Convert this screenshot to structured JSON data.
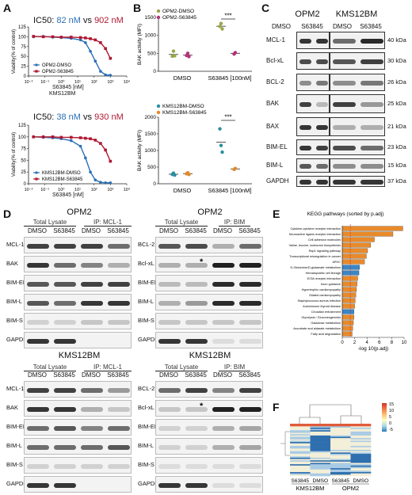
{
  "panels": {
    "A": "A",
    "B": "B",
    "C": "C",
    "D": "D",
    "E": "E",
    "F": "F"
  },
  "colors": {
    "dmso": "#1b3a6b",
    "s63845": "#b01830",
    "dmso_light": "#2b6fb5",
    "s_light": "#e08a2a",
    "orange": "#e98a2a",
    "blue": "#3a86c6",
    "red_line": "#cc2222"
  },
  "panelA": {
    "top": {
      "ic50_prefix": "IC50:",
      "ic50_dmso": "82 nM",
      "vs": "vs",
      "ic50_s": "902 nM",
      "ylabel": "Viability(% of control)",
      "xlabel": "S63845 [nM]",
      "cell": "KMS12BM",
      "legend": [
        "OPM2-DMSO",
        "OPM2-S63845"
      ]
    },
    "bottom": {
      "ic50_prefix": "IC50:",
      "ic50_dmso": "38 nM",
      "vs": "vs",
      "ic50_s": "930 nM",
      "ylabel": "Viability(% of control)",
      "xlabel": "S63845 [nM]",
      "legend": [
        "KMS12BM-DMSO",
        "KMS12BM-S63845"
      ]
    },
    "yticks": [
      "0",
      "25",
      "50",
      "75",
      "100",
      "125"
    ],
    "xticks": [
      "10⁻²",
      "10⁻¹",
      "10⁰",
      "10¹",
      "10²",
      "10³",
      "10⁴"
    ]
  },
  "chart_data": [
    {
      "type": "scatter",
      "title": "IC50: 82 nM vs 902 nM",
      "xlabel": "S63845 [nM]",
      "ylabel": "Viability(% of control)",
      "ylim": [
        0,
        125
      ],
      "xscale": "log",
      "series": [
        {
          "name": "OPM2-DMSO",
          "x": [
            0.02,
            0.08,
            0.3,
            1,
            4,
            15,
            30,
            60,
            120,
            250,
            500,
            1000
          ],
          "y": [
            100,
            101,
            99,
            98,
            96,
            92,
            85,
            63,
            38,
            12,
            3,
            2
          ]
        },
        {
          "name": "OPM2-S63845",
          "x": [
            0.02,
            0.08,
            0.3,
            1,
            4,
            15,
            30,
            60,
            120,
            250,
            500,
            1000
          ],
          "y": [
            101,
            100,
            100,
            99,
            99,
            98,
            97,
            95,
            92,
            85,
            70,
            45
          ]
        }
      ]
    },
    {
      "type": "scatter",
      "title": "IC50: 38 nM vs 930 nM",
      "xlabel": "S63845 [nM]",
      "ylabel": "Viability(% of control)",
      "ylim": [
        0,
        125
      ],
      "xscale": "log",
      "series": [
        {
          "name": "KMS12BM-DMSO",
          "x": [
            0.02,
            0.08,
            0.3,
            1,
            4,
            15,
            30,
            60,
            120,
            250,
            500,
            1000
          ],
          "y": [
            100,
            99,
            98,
            96,
            92,
            80,
            55,
            25,
            8,
            3,
            2,
            2
          ]
        },
        {
          "name": "KMS12BM-S63845",
          "x": [
            0.02,
            0.08,
            0.3,
            1,
            4,
            15,
            30,
            60,
            120,
            250,
            500,
            1000
          ],
          "y": [
            100,
            100,
            100,
            99,
            99,
            98,
            97,
            96,
            93,
            86,
            72,
            48
          ]
        }
      ]
    },
    {
      "type": "scatter",
      "ylabel": "BAK activity (MFI)",
      "ylim": [
        0,
        1500
      ],
      "categories": [
        "DMSO",
        "S63845 [100nM]"
      ],
      "significance": "***",
      "series": [
        {
          "name": "OPM2-DMSO",
          "x": [
            "DMSO",
            "DMSO",
            "DMSO",
            "S63845 [100nM]",
            "S63845 [100nM]",
            "S63845 [100nM]"
          ],
          "y": [
            420,
            560,
            430,
            1250,
            1330,
            1180
          ]
        },
        {
          "name": "OPM2-S63845",
          "x": [
            "DMSO",
            "DMSO",
            "DMSO",
            "S63845 [100nM]",
            "S63845 [100nM]"
          ],
          "y": [
            440,
            500,
            410,
            480,
            520
          ]
        }
      ]
    },
    {
      "type": "scatter",
      "ylabel": "BAK activity (MFI)",
      "ylim": [
        0,
        2000
      ],
      "categories": [
        "DMSO",
        "S63845 [100nM]"
      ],
      "significance": "***",
      "series": [
        {
          "name": "KMS12BM-DMSO",
          "x": [
            "DMSO",
            "DMSO",
            "DMSO",
            "S63845 [100nM]",
            "S63845 [100nM]",
            "S63845 [100nM]"
          ],
          "y": [
            280,
            320,
            260,
            1650,
            1150,
            950
          ]
        },
        {
          "name": "KMS12BM-S63845",
          "x": [
            "DMSO",
            "DMSO",
            "DMSO",
            "S63845 [100nM]",
            "S63845 [100nM]"
          ],
          "y": [
            300,
            330,
            280,
            430,
            460
          ]
        }
      ]
    },
    {
      "type": "bar",
      "title": "KEGG pathways (sorted by p.adj)",
      "xlabel": "-log 10(p.adj)",
      "xlim": [
        0,
        10
      ],
      "categories": [
        "Cytokine-cytokine receptor interaction",
        "Neuroactive ligand-receptor interaction",
        "Cell adhesion molecules",
        "Valine, leucine, isoleucine biosynthesis",
        "Rap1 signaling pathway",
        "Transcriptional misregulation in cancer",
        "ARVC",
        "D-Glutamine/D-glutamate metabolism",
        "Hematopoietic cell lineage",
        "ECM-receptor interaction",
        "Axon guidance",
        "Hypertrophic cardiomyopathy",
        "Dilated cardiomyopathy",
        "Staphylococcus aureus infection",
        "Autoimmune thyroid disease",
        "Circadian entrainment",
        "Glycolysis / Gluconeogenesis",
        "Galactose metabolism",
        "Ascorbate and aldarate metabolism",
        "Fatty acid degradation"
      ],
      "values": [
        9.8,
        8.2,
        5.2,
        4.6,
        4.1,
        3.9,
        3.6,
        2.8,
        2.7,
        2.5,
        2.4,
        2.3,
        2.2,
        2.1,
        2.0,
        1.9,
        1.9,
        1.8,
        1.7,
        1.6
      ],
      "bar_colors": [
        "orange",
        "orange",
        "orange",
        "orange",
        "orange",
        "orange",
        "orange",
        "blue",
        "blue",
        "orange",
        "orange",
        "orange",
        "orange",
        "orange",
        "orange",
        "blue",
        "orange",
        "orange",
        "orange",
        "orange"
      ]
    }
  ],
  "panelB": {
    "top_legend": [
      "OPM2-DMSO",
      "OPM2-S63845"
    ],
    "bottom_legend": [
      "KMS12BM-DMSO",
      "KMS12BM-S63845"
    ],
    "ylabel": "BAK activity (MFI)",
    "top_yticks": [
      "0",
      "500",
      "1000",
      "1500"
    ],
    "bottom_yticks": [
      "0",
      "500",
      "1000",
      "1500",
      "2000"
    ],
    "x_dmso": "DMSO",
    "x_s": "S63845 [100nM]",
    "sig": "***"
  },
  "panelC": {
    "cells": [
      "OPM2",
      "KMS12BM"
    ],
    "treat": [
      "DMSO",
      "S63845",
      "DMSO",
      "S63845"
    ],
    "rows": [
      {
        "label": "MCL-1",
        "kda": "40 kDa"
      },
      {
        "label": "Bcl-xL",
        "kda": "30 kDa"
      },
      {
        "label": "BCL-2",
        "kda": "26 kDa"
      },
      {
        "label": "BAK",
        "kda": "25 kDa"
      },
      {
        "label": "BAX",
        "kda": "21 kDa"
      },
      {
        "label": "BIM-EL",
        "kda": "23 kDa"
      },
      {
        "label": "BIM-L",
        "kda": "15 kDa"
      },
      {
        "label": "GAPDH",
        "kda": "37 kDa"
      }
    ]
  },
  "panelD": {
    "opm2_title": "OPM2",
    "kms_title": "KMS12BM",
    "kms_bim_title": "KMS12BM",
    "total": "Total Lysate",
    "ip_mcl1": "IP: MCL-1",
    "ip_bim": "IP: BIM",
    "treat": [
      "DMSO",
      "S63845",
      "DMSO",
      "S63845"
    ],
    "star": "*",
    "left_rows": [
      "MCL-1",
      "BAK",
      "BIM-EL",
      "BIM-L",
      "BIM-S",
      "GAPDH"
    ],
    "right_rows": [
      "BCL-2",
      "Bcl-xL",
      "BIM-EL",
      "BIM-L",
      "BIM-S",
      "GAPDH"
    ]
  },
  "panelE": {
    "title": "KEGG pathways (sorted by p.adj)",
    "xlabel": "-log 10(p.adj)",
    "xticks": [
      "0",
      "2",
      "4",
      "6",
      "8",
      "10"
    ]
  },
  "panelF": {
    "legend_ticks": [
      "15",
      "10",
      "5",
      "0",
      "-5"
    ],
    "cols": [
      "S63845",
      "DMSO",
      "S63845",
      "DMSO"
    ],
    "groups": [
      "KMS12BM",
      "OPM2"
    ]
  }
}
